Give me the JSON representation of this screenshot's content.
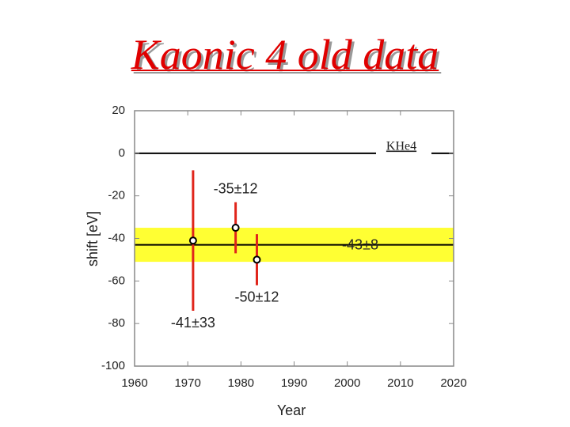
{
  "chart_data": {
    "type": "errorbar",
    "title": "Kaonic 4 old data",
    "x_label": "Year",
    "y_label": "shift [eV]",
    "x": [
      1971,
      1979,
      1983
    ],
    "series": [
      {
        "color": "#e0251b",
        "values": [
          -41,
          -35,
          -50
        ],
        "errors": [
          33,
          12,
          12
        ],
        "value_labels": [
          "-41±33",
          "-35±12",
          "-50±12"
        ]
      }
    ],
    "band": {
      "value": -43,
      "error": 8,
      "label": "-43±8",
      "color": "#ffff33"
    },
    "reference_line": 0,
    "annotation": "KHe4",
    "xlim": [
      1960,
      2020
    ],
    "xticks": [
      1960,
      1970,
      1980,
      1990,
      2000,
      2010,
      2020
    ],
    "ylim": [
      -100,
      20
    ],
    "yticks": [
      -100,
      -80,
      -60,
      -40,
      -20,
      0,
      20
    ]
  }
}
